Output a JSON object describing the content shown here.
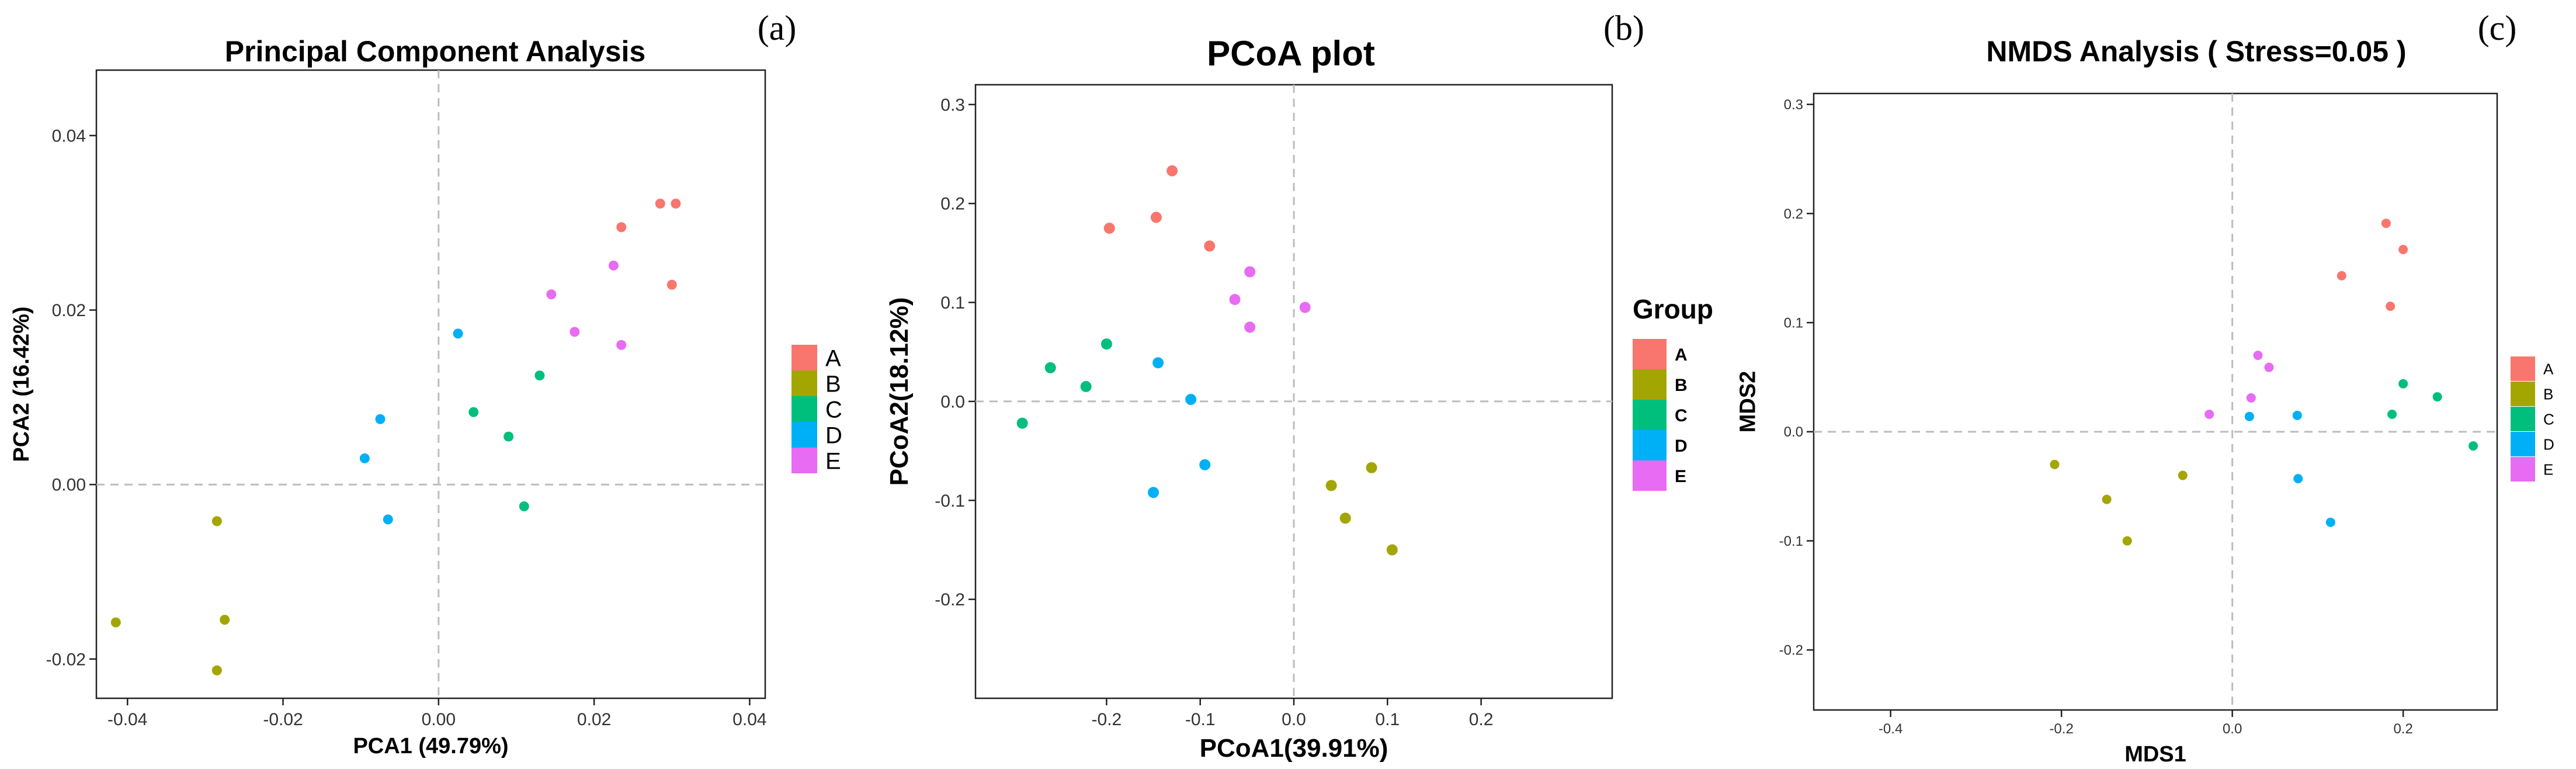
{
  "colors": {
    "A": "#F8766D",
    "B": "#A3A500",
    "C": "#00BF7D",
    "D": "#00B0F6",
    "E": "#E76BF3"
  },
  "chart_data": [
    {
      "type": "scatter",
      "panel_label": "(a)",
      "title": "Principal Component Analysis",
      "xlabel": "PCA1 (49.79%)",
      "ylabel": "PCA2 (16.42%)",
      "xlim": [
        -0.044,
        0.042
      ],
      "ylim": [
        -0.0245,
        0.0475
      ],
      "xticks": [
        -0.04,
        -0.02,
        0.0,
        0.02,
        0.04
      ],
      "xtick_labels": [
        "-0.04",
        "-0.02",
        "0.00",
        "0.02",
        "0.04"
      ],
      "yticks": [
        -0.02,
        0.0,
        0.02,
        0.04
      ],
      "ytick_labels": [
        "-0.02",
        "0.00",
        "0.02",
        "0.04"
      ],
      "legend": {
        "title": "",
        "entries": [
          "A",
          "B",
          "C",
          "D",
          "E"
        ]
      },
      "series": [
        {
          "name": "A",
          "points": [
            [
              0.0235,
              0.0295
            ],
            [
              0.0285,
              0.0322
            ],
            [
              0.0305,
              0.0322
            ],
            [
              0.03,
              0.0229
            ]
          ]
        },
        {
          "name": "B",
          "points": [
            [
              -0.0285,
              -0.0042
            ],
            [
              -0.0275,
              -0.0155
            ],
            [
              -0.0415,
              -0.0158
            ],
            [
              -0.0285,
              -0.0213
            ]
          ]
        },
        {
          "name": "C",
          "points": [
            [
              0.0045,
              0.0083
            ],
            [
              0.009,
              0.0055
            ],
            [
              0.013,
              0.0125
            ],
            [
              0.011,
              -0.0025
            ]
          ]
        },
        {
          "name": "D",
          "points": [
            [
              0.0025,
              0.0173
            ],
            [
              -0.0075,
              0.0075
            ],
            [
              -0.0095,
              0.003
            ],
            [
              -0.0065,
              -0.004
            ]
          ]
        },
        {
          "name": "E",
          "points": [
            [
              0.0145,
              0.0218
            ],
            [
              0.0175,
              0.0175
            ],
            [
              0.0225,
              0.0251
            ],
            [
              0.0235,
              0.016
            ]
          ]
        }
      ]
    },
    {
      "type": "scatter",
      "panel_label": "(b)",
      "title": "PCoA plot",
      "xlabel": "PCoA1(39.91%)",
      "ylabel": "PCoA2(18.12%)",
      "xlim": [
        -0.34,
        0.34
      ],
      "ylim": [
        -0.3,
        0.32
      ],
      "xticks": [
        -0.2,
        -0.1,
        0.0,
        0.1,
        0.2
      ],
      "xtick_labels": [
        "-0.2",
        "-0.1",
        "0.0",
        "0.1",
        "0.2"
      ],
      "yticks": [
        -0.2,
        -0.1,
        0.0,
        0.1,
        0.2,
        0.3
      ],
      "ytick_labels": [
        "-0.2",
        "-0.1",
        "0.0",
        "0.1",
        "0.2",
        "0.3"
      ],
      "legend": {
        "title": "Group",
        "entries": [
          "A",
          "B",
          "C",
          "D",
          "E"
        ]
      },
      "series": [
        {
          "name": "A",
          "points": [
            [
              -0.197,
              0.175
            ],
            [
              -0.147,
              0.186
            ],
            [
              -0.13,
              0.233
            ],
            [
              -0.09,
              0.157
            ]
          ]
        },
        {
          "name": "B",
          "points": [
            [
              0.04,
              -0.085
            ],
            [
              0.083,
              -0.067
            ],
            [
              0.055,
              -0.118
            ],
            [
              0.105,
              -0.15
            ]
          ]
        },
        {
          "name": "C",
          "points": [
            [
              -0.29,
              -0.022
            ],
            [
              -0.26,
              0.034
            ],
            [
              -0.2,
              0.058
            ],
            [
              -0.222,
              0.015
            ]
          ]
        },
        {
          "name": "D",
          "points": [
            [
              -0.145,
              0.039
            ],
            [
              -0.11,
              0.002
            ],
            [
              -0.15,
              -0.092
            ],
            [
              -0.095,
              -0.064
            ]
          ]
        },
        {
          "name": "E",
          "points": [
            [
              -0.063,
              0.103
            ],
            [
              -0.047,
              0.131
            ],
            [
              -0.047,
              0.075
            ],
            [
              0.012,
              0.095
            ]
          ]
        }
      ]
    },
    {
      "type": "scatter",
      "panel_label": "(c)",
      "title": "NMDS Analysis ( Stress=0.05 )",
      "xlabel": "MDS1",
      "ylabel": "MDS2",
      "xlim": [
        -0.49,
        0.31
      ],
      "ylim": [
        -0.255,
        0.31
      ],
      "xticks": [
        -0.4,
        -0.2,
        0.0,
        0.2
      ],
      "xtick_labels": [
        "-0.4",
        "-0.2",
        "0.0",
        "0.2"
      ],
      "yticks": [
        -0.2,
        -0.1,
        0.0,
        0.1,
        0.2,
        0.3
      ],
      "ytick_labels": [
        "-0.2",
        "-0.1",
        "0.0",
        "0.1",
        "0.2",
        "0.3"
      ],
      "legend": {
        "title": "",
        "entries": [
          "A",
          "B",
          "C",
          "D",
          "E"
        ]
      },
      "series": [
        {
          "name": "A",
          "points": [
            [
              0.128,
              0.143
            ],
            [
              0.18,
              0.191
            ],
            [
              0.2,
              0.167
            ],
            [
              0.185,
              0.115
            ]
          ]
        },
        {
          "name": "B",
          "points": [
            [
              -0.208,
              -0.03
            ],
            [
              -0.147,
              -0.062
            ],
            [
              -0.123,
              -0.1
            ],
            [
              -0.058,
              -0.04
            ]
          ]
        },
        {
          "name": "C",
          "points": [
            [
              0.2,
              0.044
            ],
            [
              0.24,
              0.032
            ],
            [
              0.187,
              0.016
            ],
            [
              0.282,
              -0.013
            ]
          ]
        },
        {
          "name": "D",
          "points": [
            [
              0.02,
              0.014
            ],
            [
              0.076,
              0.015
            ],
            [
              0.077,
              -0.043
            ],
            [
              0.115,
              -0.083
            ]
          ]
        },
        {
          "name": "E",
          "points": [
            [
              0.03,
              0.07
            ],
            [
              0.043,
              0.059
            ],
            [
              0.022,
              0.031
            ],
            [
              -0.027,
              0.016
            ]
          ]
        }
      ]
    }
  ]
}
